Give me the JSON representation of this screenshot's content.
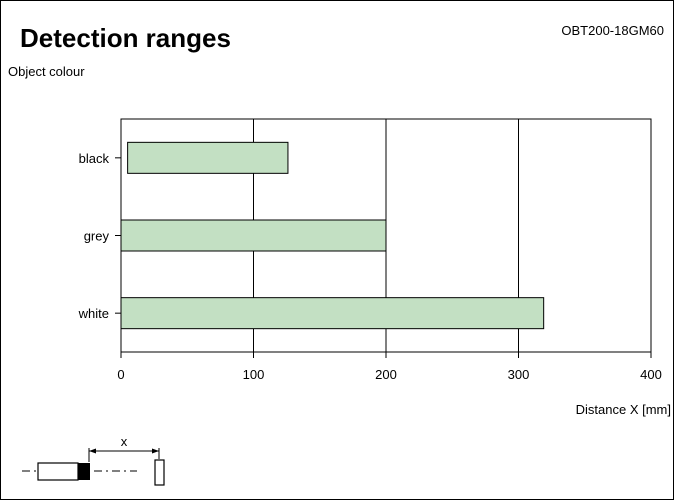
{
  "header": {
    "title": "Detection ranges",
    "model": "OBT200-18GM60",
    "yaxis_title": "Object colour",
    "xlabel": "Distance X [mm]"
  },
  "diagram": {
    "distance_symbol": "x"
  },
  "colors": {
    "bar_fill": "#c3e0c3",
    "bar_stroke": "#000000",
    "axis": "#000000"
  },
  "chart_data": {
    "type": "bar",
    "orientation": "horizontal",
    "categories": [
      "black",
      "grey",
      "white"
    ],
    "series": [
      {
        "start": [
          5,
          0,
          0
        ],
        "values": [
          126,
          200,
          319
        ]
      }
    ],
    "xlabel": "Distance X [mm]",
    "ylabel": "Object colour",
    "xlim": [
      0,
      400
    ],
    "xticks": [
      0,
      100,
      200,
      300,
      400
    ],
    "grid": true
  }
}
